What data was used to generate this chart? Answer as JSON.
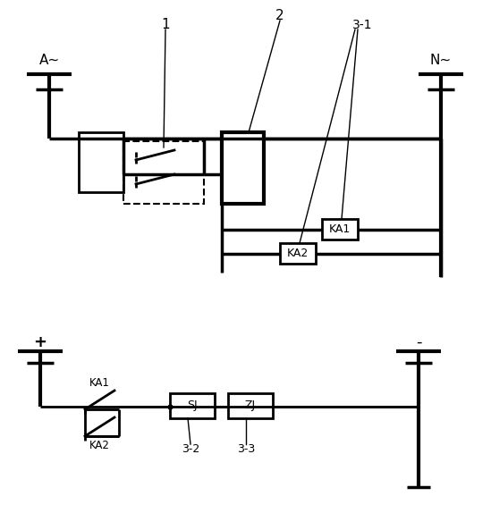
{
  "fig_width": 5.49,
  "fig_height": 5.74,
  "dpi": 100,
  "line_color": "black",
  "lw": 2.0,
  "bg_color": "white",
  "labels": {
    "A": "A~",
    "N": "N~",
    "plus": "+",
    "minus": "-",
    "num1": "1",
    "num2": "2",
    "num31": "3-1",
    "KA1_top": "KA1",
    "KA2_top": "KA2",
    "KA1_bot": "KA1",
    "KA2_bot": "KA2",
    "SJ": "SJ",
    "ZJ": "ZJ",
    "label32": "3-2",
    "label33": "3-3"
  }
}
